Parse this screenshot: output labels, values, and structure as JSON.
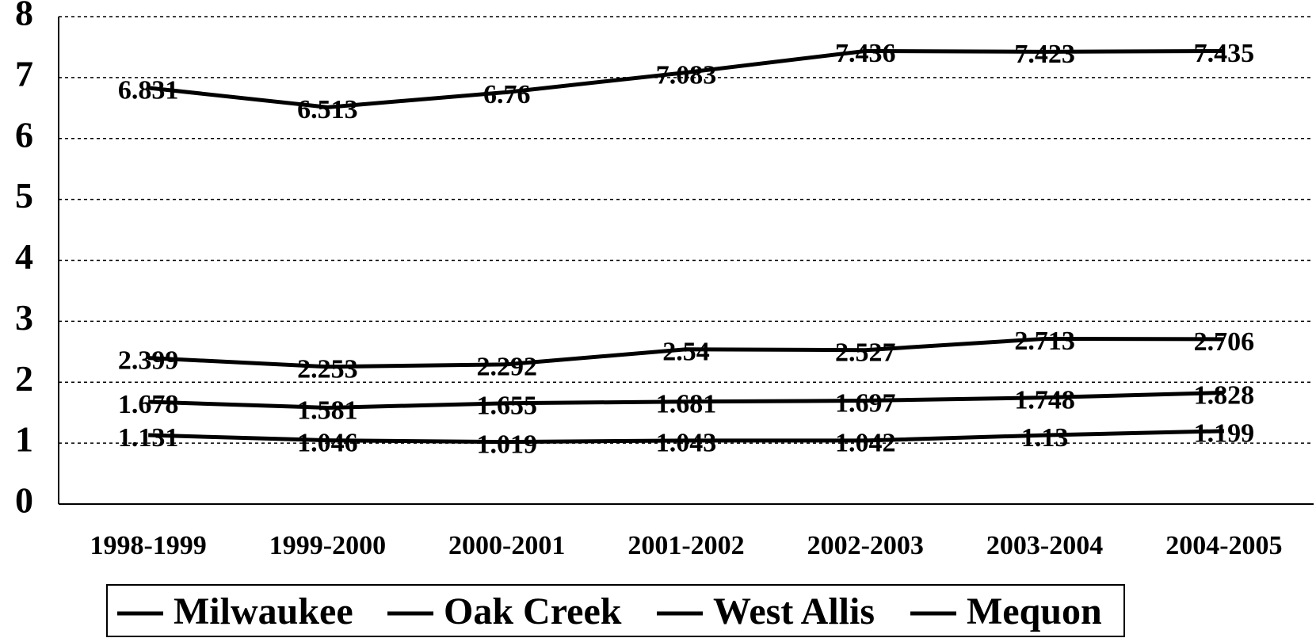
{
  "chart_data": {
    "type": "line",
    "categories": [
      "1998-1999",
      "1999-2000",
      "2000-2001",
      "2001-2002",
      "2002-2003",
      "2003-2004",
      "2004-2005"
    ],
    "series": [
      {
        "name": "Milwaukee",
        "color": "#000000",
        "values": [
          6.831,
          6.513,
          6.76,
          7.083,
          7.436,
          7.423,
          7.435
        ]
      },
      {
        "name": "Oak Creek",
        "color": "#000000",
        "values": [
          2.399,
          2.253,
          2.292,
          2.54,
          2.527,
          2.713,
          2.706
        ]
      },
      {
        "name": "West Allis",
        "color": "#000000",
        "values": [
          1.678,
          1.581,
          1.655,
          1.681,
          1.697,
          1.748,
          1.828
        ]
      },
      {
        "name": "Mequon",
        "color": "#000000",
        "values": [
          1.131,
          1.046,
          1.019,
          1.043,
          1.042,
          1.13,
          1.199
        ]
      }
    ],
    "ylim": [
      0,
      8
    ],
    "yticks": [
      0,
      1,
      2,
      3,
      4,
      5,
      6,
      7,
      8
    ],
    "grid": true,
    "legend": "bottom"
  }
}
